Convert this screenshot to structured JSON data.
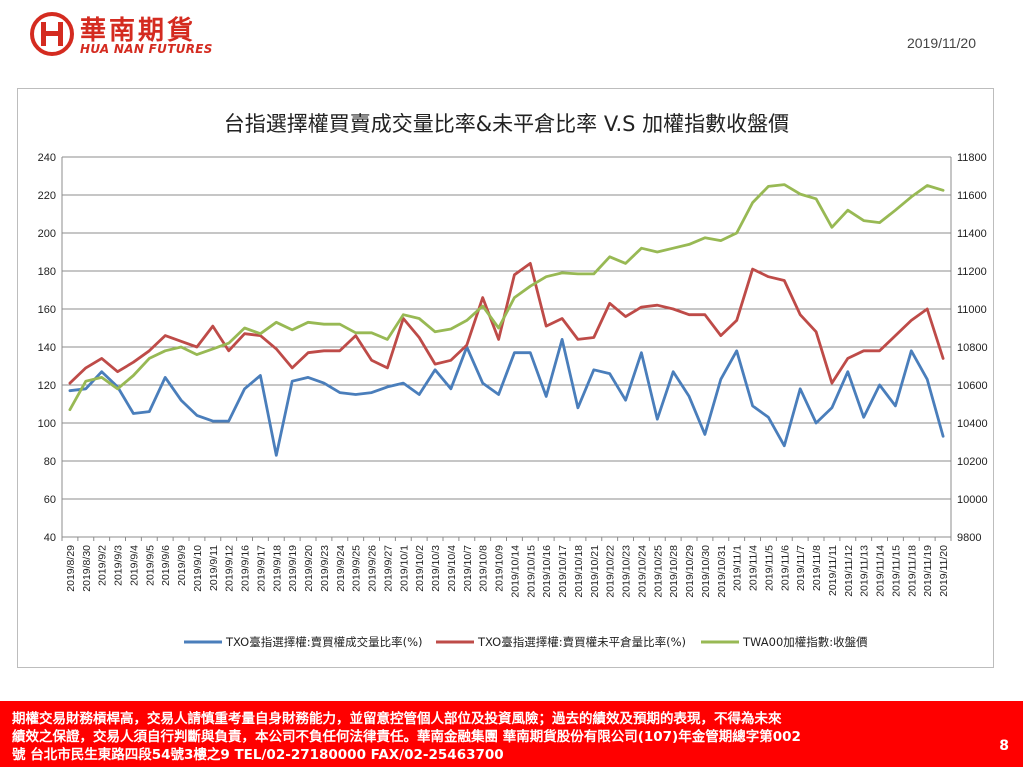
{
  "header": {
    "logo_cn": "華南期貨",
    "logo_en": "HUA NAN FUTURES",
    "date": "2019/11/20"
  },
  "footer": {
    "disclaimer_line1": "期權交易財務槓桿高，交易人請慎重考量自身財務能力，並留意控管個人部位及投資風險；過去的績效及預期的表現，不得為未來",
    "disclaimer_line2": "績效之保證，交易人須自行判斷與負責，本公司不負任何法律責任。華南金融集團 華南期貨股份有限公司(107)年金管期總字第002",
    "disclaimer_line3": "號 台北市民生東路四段54號3樓之9 TEL/02-27180000 FAX/02-25463700",
    "page_number": "8",
    "color": "#ff0000"
  },
  "chart_data": {
    "type": "line",
    "title": "台指選擇權買賣成交量比率&未平倉比率 V.S 加權指數收盤價",
    "x": [
      "2019/8/29",
      "2019/8/30",
      "2019/9/2",
      "2019/9/3",
      "2019/9/4",
      "2019/9/5",
      "2019/9/6",
      "2019/9/9",
      "2019/9/10",
      "2019/9/11",
      "2019/9/12",
      "2019/9/16",
      "2019/9/17",
      "2019/9/18",
      "2019/9/19",
      "2019/9/20",
      "2019/9/23",
      "2019/9/24",
      "2019/9/25",
      "2019/9/26",
      "2019/9/27",
      "2019/10/1",
      "2019/10/2",
      "2019/10/3",
      "2019/10/4",
      "2019/10/7",
      "2019/10/8",
      "2019/10/9",
      "2019/10/14",
      "2019/10/15",
      "2019/10/16",
      "2019/10/17",
      "2019/10/18",
      "2019/10/21",
      "2019/10/22",
      "2019/10/23",
      "2019/10/24",
      "2019/10/25",
      "2019/10/28",
      "2019/10/29",
      "2019/10/30",
      "2019/10/31",
      "2019/11/1",
      "2019/11/4",
      "2019/11/5",
      "2019/11/6",
      "2019/11/7",
      "2019/11/8",
      "2019/11/11",
      "2019/11/12",
      "2019/11/13",
      "2019/11/14",
      "2019/11/15",
      "2019/11/18",
      "2019/11/19",
      "2019/11/20"
    ],
    "y_left": {
      "min": 40,
      "max": 240,
      "ticks": [
        40,
        60,
        80,
        100,
        120,
        140,
        160,
        180,
        200,
        220,
        240
      ]
    },
    "y_right": {
      "min": 9800,
      "max": 11800,
      "ticks": [
        9800,
        10000,
        10200,
        10400,
        10600,
        10800,
        11000,
        11200,
        11400,
        11600,
        11800
      ]
    },
    "grid": true,
    "legend_position": "bottom",
    "series": [
      {
        "name": "TXO臺指選擇權:賣買權成交量比率(%)",
        "axis": "left",
        "color": "#4a7ebb",
        "values": [
          117,
          118,
          127,
          119,
          105,
          106,
          124,
          112,
          104,
          101,
          101,
          118,
          125,
          83,
          122,
          124,
          121,
          116,
          115,
          116,
          119,
          121,
          115,
          128,
          118,
          140,
          121,
          115,
          137,
          137,
          114,
          144,
          108,
          128,
          126,
          112,
          137,
          102,
          127,
          114,
          94,
          123,
          138,
          109,
          103,
          88,
          118,
          100,
          108,
          127,
          103,
          120,
          109,
          138,
          123,
          93
        ]
      },
      {
        "name": "TXO臺指選擇權:賣買權未平倉量比率(%)",
        "axis": "left",
        "color": "#be4b48",
        "values": [
          121,
          129,
          134,
          127,
          132,
          138,
          146,
          143,
          140,
          151,
          138,
          147,
          146,
          139,
          129,
          137,
          138,
          138,
          146,
          133,
          129,
          155,
          145,
          131,
          133,
          141,
          166,
          144,
          178,
          184,
          151,
          155,
          144,
          145,
          163,
          156,
          161,
          162,
          160,
          157,
          157,
          146,
          154,
          181,
          177,
          175,
          157,
          148,
          121,
          134,
          138,
          138,
          146,
          154,
          160,
          134
        ]
      },
      {
        "name": "TWA00加權指數:收盤價",
        "axis": "right",
        "color": "#98b954",
        "values": [
          10470,
          10620,
          10640,
          10580,
          10650,
          10740,
          10780,
          10800,
          10760,
          10790,
          10820,
          10900,
          10870,
          10930,
          10890,
          10930,
          10920,
          10920,
          10875,
          10875,
          10840,
          10970,
          10950,
          10880,
          10895,
          10940,
          11015,
          10900,
          11060,
          11120,
          11170,
          11190,
          11185,
          11185,
          11275,
          11240,
          11320,
          11300,
          11320,
          11340,
          11375,
          11360,
          11400,
          11560,
          11645,
          11655,
          11605,
          11580,
          11430,
          11520,
          11465,
          11455,
          11520,
          11590,
          11650,
          11625
        ]
      }
    ]
  }
}
